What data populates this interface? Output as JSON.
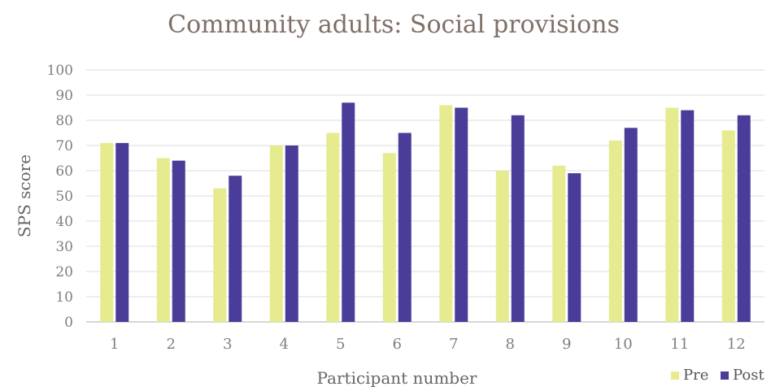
{
  "chart_data": {
    "type": "bar",
    "title": "Community adults: Social provisions",
    "xlabel": "Participant number",
    "ylabel": "SPS score",
    "ylim": [
      0,
      100
    ],
    "yticks": [
      "0",
      "10",
      "20",
      "30",
      "40",
      "50",
      "60",
      "70",
      "80",
      "90",
      "100"
    ],
    "categories": [
      "1",
      "2",
      "3",
      "4",
      "5",
      "6",
      "7",
      "8",
      "9",
      "10",
      "11",
      "12"
    ],
    "series": [
      {
        "name": "Pre",
        "color": "#e6eb8f",
        "values": [
          71,
          65,
          53,
          70,
          75,
          67,
          86,
          60,
          62,
          72,
          85,
          76
        ]
      },
      {
        "name": "Post",
        "color": "#4a3d99",
        "values": [
          71,
          64,
          58,
          70,
          87,
          75,
          85,
          82,
          59,
          77,
          84,
          82
        ]
      }
    ],
    "grid": true,
    "legend": "bottom-right"
  }
}
